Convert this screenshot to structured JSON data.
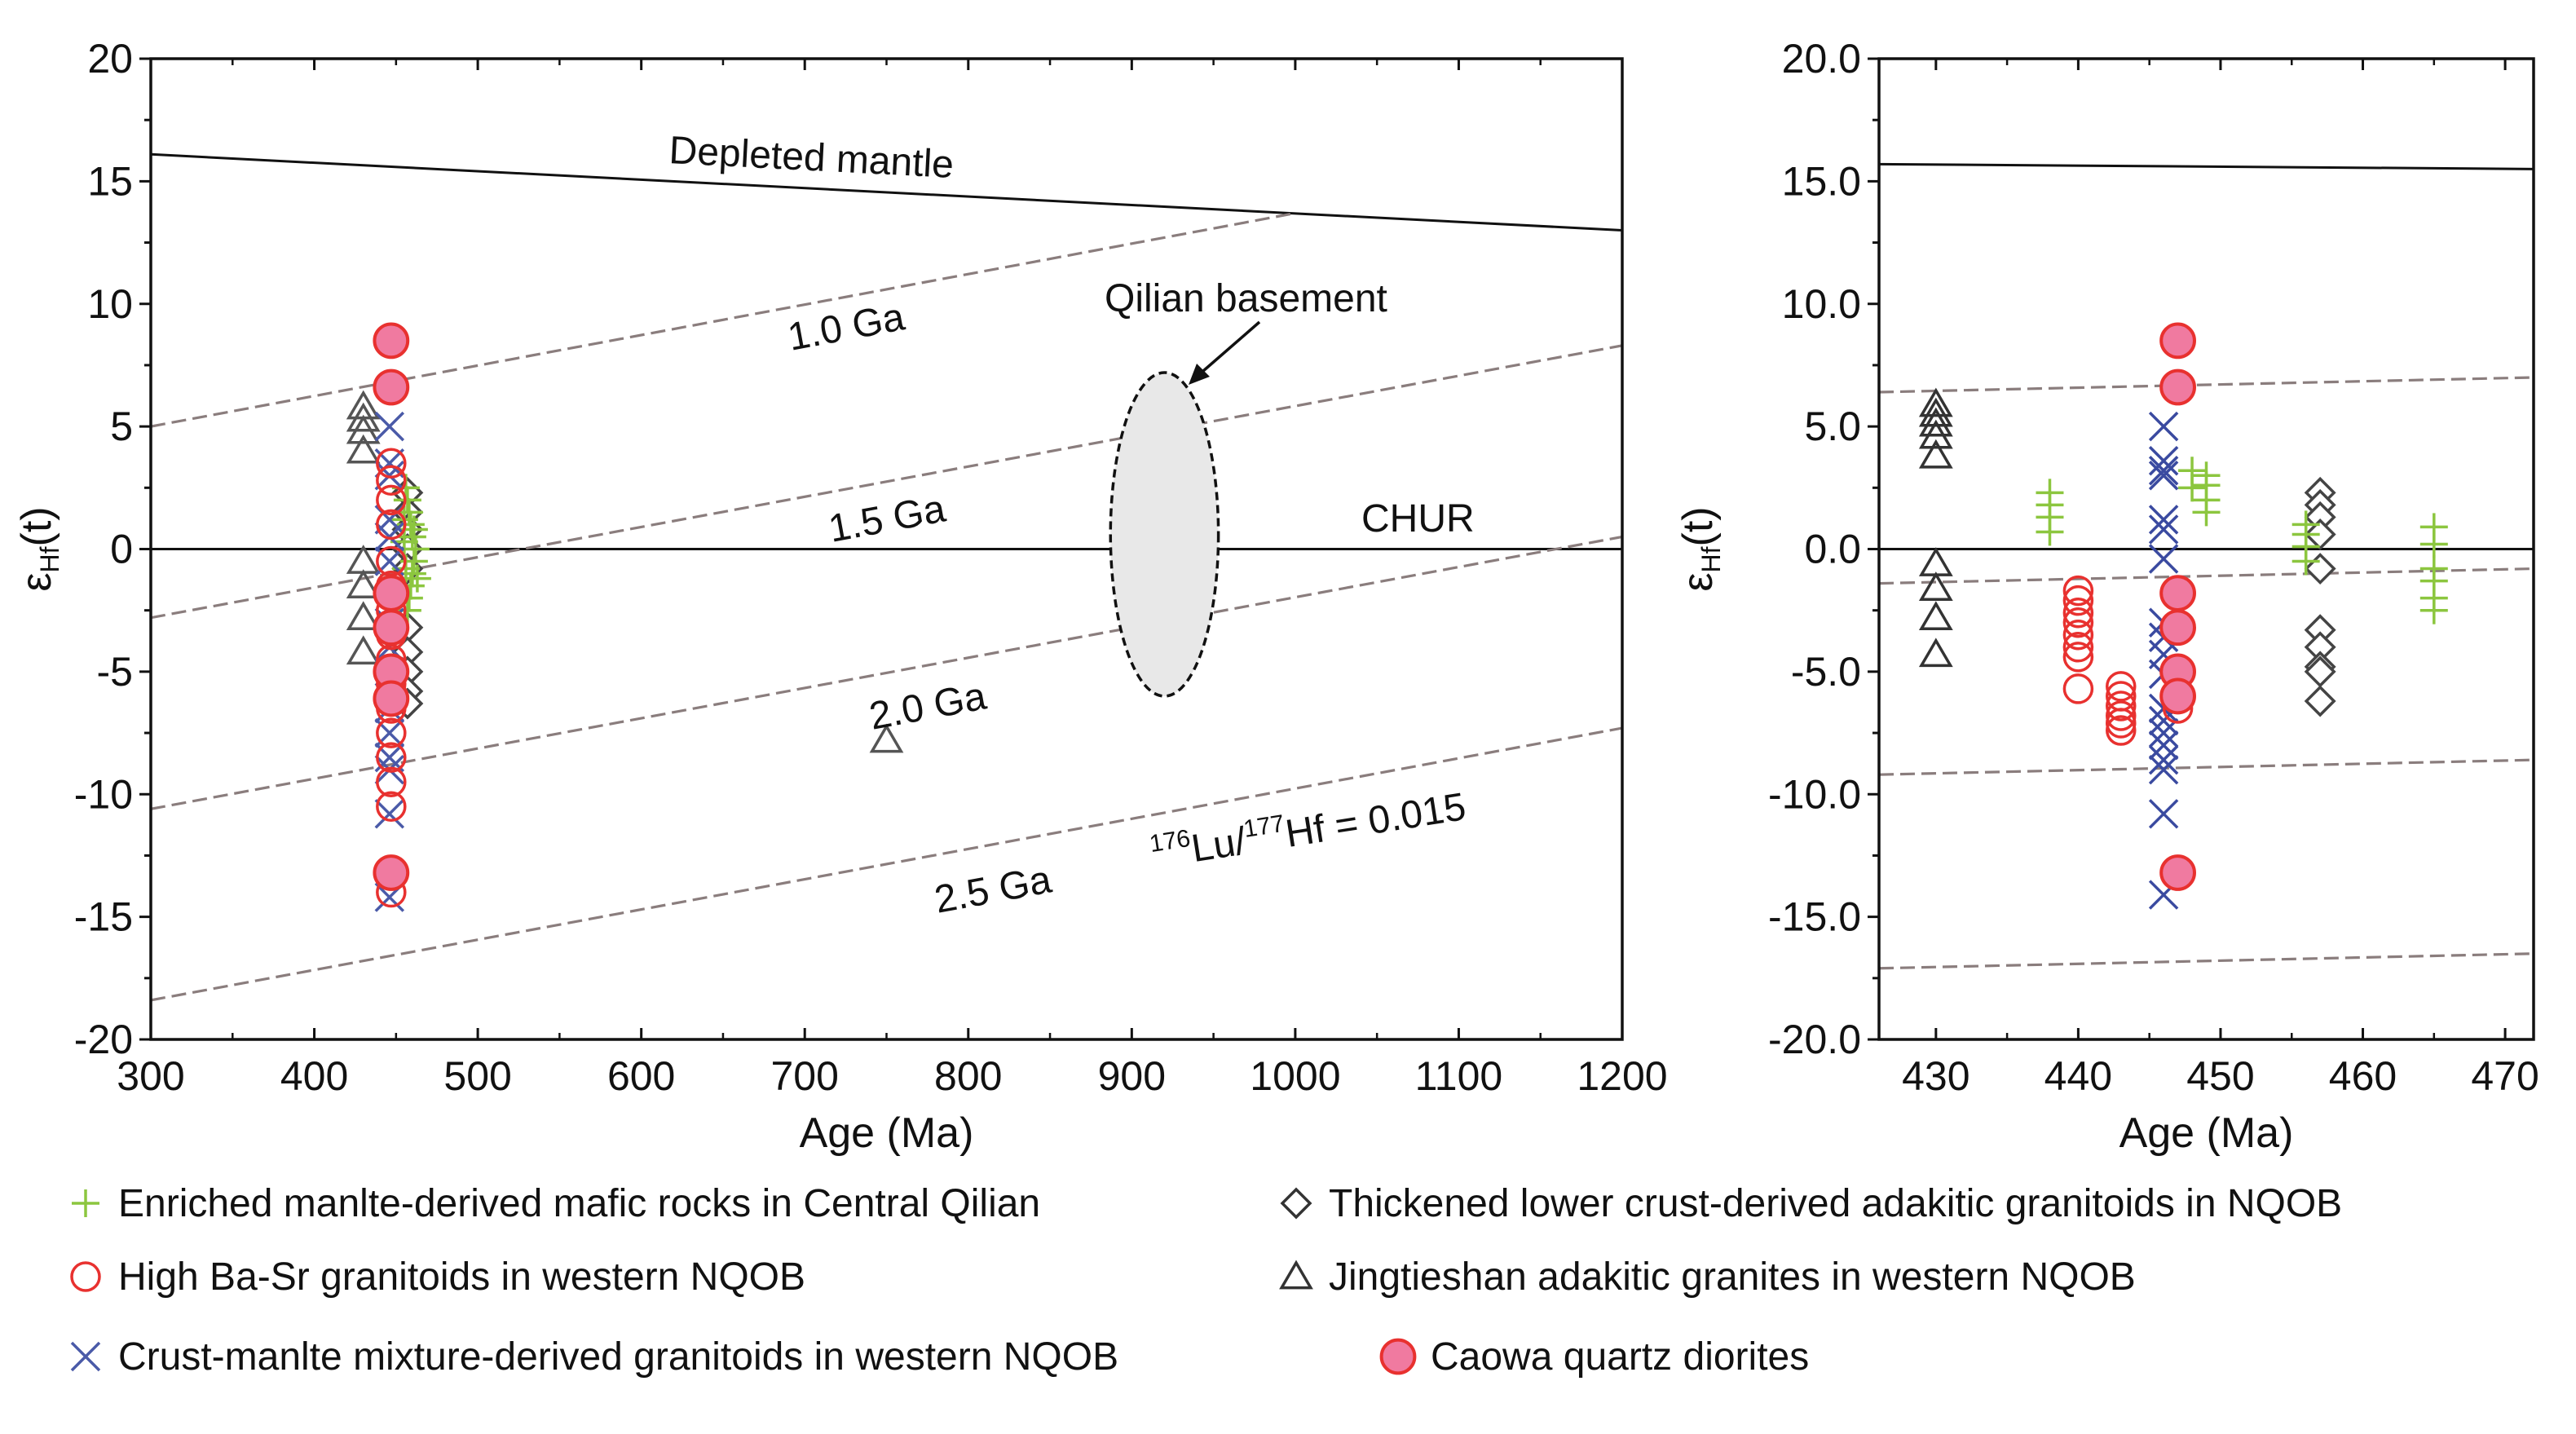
{
  "chart_data": [
    {
      "type": "scatter",
      "panel": "left",
      "xlabel": "Age (Ma)",
      "ylabel": "εHf(t)",
      "xlim": [
        300,
        1200
      ],
      "ylim": [
        -20,
        20
      ],
      "x_ticks": [
        "300",
        "400",
        "500",
        "600",
        "700",
        "800",
        "900",
        "1000",
        "1100",
        "1200"
      ],
      "y_ticks": [
        "20",
        "15",
        "10",
        "5",
        "0",
        "-5",
        "-10",
        "-15",
        "-20"
      ],
      "reference_lines": [
        {
          "name": "Depleted mantle",
          "x": [
            300,
            1200
          ],
          "y": [
            16.1,
            13.0
          ]
        },
        {
          "name": "CHUR",
          "x": [
            300,
            1200
          ],
          "y": [
            0,
            0
          ]
        },
        {
          "name": "1.0 Ga",
          "x": [
            300,
            1000
          ],
          "y": [
            5.0,
            13.7
          ]
        },
        {
          "name": "1.5 Ga",
          "x": [
            300,
            1200
          ],
          "y": [
            -2.8,
            8.3
          ]
        },
        {
          "name": "2.0 Ga",
          "x": [
            300,
            1200
          ],
          "y": [
            -10.6,
            0.5
          ]
        },
        {
          "name": "2.5 Ga",
          "x": [
            300,
            1200
          ],
          "y": [
            -18.4,
            -7.3
          ]
        }
      ],
      "annotations": {
        "depleted_mantle": "Depleted mantle",
        "chur": "CHUR",
        "ga10": "1.0 Ga",
        "ga15": "1.5 Ga",
        "ga20": "2.0 Ga",
        "ga25": "2.5 Ga",
        "basement": "Qilian basement",
        "lu_hf_pre": "Lu/",
        "lu_sup": "176",
        "hf_sup": "177",
        "lu_hf_post": "Hf = 0.015"
      },
      "basement_ellipse": {
        "x_center": 920,
        "y_center": 0.6,
        "x_halfwidth": 33,
        "y_halfheight": 6.6
      },
      "series": [
        {
          "name": "Enriched manlte-derived mafic rocks in Central Qilian",
          "marker": "plus",
          "color": "#8cc63f",
          "points": [
            [
              457,
              -2.5
            ],
            [
              458,
              -2.0
            ],
            [
              459,
              -1.5
            ],
            [
              460,
              -1.0
            ],
            [
              461,
              -0.5
            ],
            [
              462,
              0.0
            ],
            [
              460,
              0.5
            ],
            [
              459,
              1.0
            ],
            [
              458,
              1.5
            ],
            [
              457,
              2.0
            ],
            [
              456,
              -0.8
            ],
            [
              461,
              0.8
            ],
            [
              463,
              -1.2
            ],
            [
              455,
              0.3
            ],
            [
              455,
              1.2
            ],
            [
              456,
              2.5
            ]
          ]
        },
        {
          "name": "Thickened lower crust-derived adaktic granitoids in NQOB",
          "marker": "diamond",
          "color": "#444444",
          "points": [
            [
              457,
              2.3
            ],
            [
              457,
              1.5
            ],
            [
              457,
              0.8
            ],
            [
              457,
              0.0
            ],
            [
              457,
              -0.8
            ],
            [
              457,
              -3.2
            ],
            [
              457,
              -4.2
            ],
            [
              457,
              -5.0
            ],
            [
              457,
              -5.8
            ],
            [
              457,
              -6.3
            ]
          ]
        },
        {
          "name": "High Ba-Sr granitoids in western NQOB",
          "marker": "circle-open",
          "color": "#e8312f",
          "points": [
            [
              447,
              3.5
            ],
            [
              447,
              2.8
            ],
            [
              447,
              2.0
            ],
            [
              447,
              1.0
            ],
            [
              447,
              -0.5
            ],
            [
              447,
              -1.5
            ],
            [
              447,
              -2.5
            ],
            [
              447,
              -3.5
            ],
            [
              447,
              -4.5
            ],
            [
              447,
              -5.5
            ],
            [
              447,
              -6.5
            ],
            [
              447,
              -7.5
            ],
            [
              447,
              -8.5
            ],
            [
              447,
              -9.5
            ],
            [
              447,
              -10.5
            ],
            [
              447,
              -14.0
            ]
          ]
        },
        {
          "name": "Jingtieshan adaktic granites in western NQOB",
          "marker": "triangle",
          "color": "#555555",
          "points": [
            [
              430,
              5.8
            ],
            [
              430,
              5.3
            ],
            [
              430,
              4.8
            ],
            [
              430,
              4.0
            ],
            [
              430,
              -0.5
            ],
            [
              430,
              -1.5
            ],
            [
              430,
              -2.8
            ],
            [
              430,
              -4.2
            ],
            [
              750,
              -7.8
            ]
          ]
        },
        {
          "name": "Crust-manlte mixture-derived granitoids in western NQOB",
          "marker": "cross",
          "color": "#4a5aa8",
          "points": [
            [
              446,
              5.0
            ],
            [
              446,
              3.5
            ],
            [
              446,
              3.0
            ],
            [
              446,
              1.2
            ],
            [
              446,
              0.5
            ],
            [
              446,
              -0.5
            ],
            [
              446,
              -3.0
            ],
            [
              446,
              -4.0
            ],
            [
              446,
              -5.0
            ],
            [
              446,
              -6.5
            ],
            [
              446,
              -7.5
            ],
            [
              446,
              -8.5
            ],
            [
              446,
              -9.0
            ],
            [
              446,
              -10.8
            ],
            [
              446,
              -14.2
            ]
          ]
        },
        {
          "name": "Caowa quartz diorites",
          "marker": "circle-filled",
          "color": "#f07aa0",
          "points": [
            [
              447,
              8.5
            ],
            [
              447,
              6.6
            ],
            [
              447,
              -1.8
            ],
            [
              447,
              -3.2
            ],
            [
              447,
              -5.0
            ],
            [
              447,
              -6.1
            ],
            [
              447,
              -13.2
            ]
          ]
        }
      ]
    },
    {
      "type": "scatter",
      "panel": "right",
      "xlabel": "Age (Ma)",
      "ylabel": "εHf(t)",
      "xlim": [
        426,
        472
      ],
      "ylim": [
        -20,
        20
      ],
      "x_ticks": [
        "430",
        "440",
        "450",
        "460",
        "470"
      ],
      "y_ticks": [
        "20.0",
        "15.0",
        "10.0",
        "5.0",
        "0.0",
        "-5.0",
        "-10.0",
        "-15.0",
        "-20.0"
      ],
      "reference_lines": [
        {
          "name": "Depleted mantle",
          "x": [
            426,
            472
          ],
          "y": [
            15.7,
            15.5
          ]
        },
        {
          "name": "CHUR",
          "x": [
            426,
            472
          ],
          "y": [
            0,
            0
          ]
        },
        {
          "name": "1.0 Ga",
          "x": [
            426,
            472
          ],
          "y": [
            6.4,
            7.0
          ]
        },
        {
          "name": "1.5 Ga",
          "x": [
            426,
            472
          ],
          "y": [
            -1.4,
            -0.8
          ]
        },
        {
          "name": "2.0 Ga",
          "x": [
            426,
            472
          ],
          "y": [
            -9.2,
            -8.6
          ]
        },
        {
          "name": "2.5 Ga",
          "x": [
            426,
            472
          ],
          "y": [
            -17.1,
            -16.5
          ]
        }
      ],
      "series": [
        {
          "name": "Enriched manlte-derived mafic rocks in Central Qilian",
          "marker": "plus",
          "color": "#8cc63f",
          "points": [
            [
              438,
              0.7
            ],
            [
              438,
              1.3
            ],
            [
              438,
              1.8
            ],
            [
              438,
              2.3
            ],
            [
              448,
              3.2
            ],
            [
              448,
              2.5
            ],
            [
              449,
              3.0
            ],
            [
              449,
              2.0
            ],
            [
              449,
              1.5
            ],
            [
              449,
              2.6
            ],
            [
              456,
              -0.5
            ],
            [
              456,
              0.1
            ],
            [
              456,
              0.6
            ],
            [
              456,
              1.0
            ],
            [
              465,
              -2.5
            ],
            [
              465,
              -2.0
            ],
            [
              465,
              -1.3
            ],
            [
              465,
              -0.8
            ],
            [
              465,
              0.2
            ],
            [
              465,
              0.9
            ]
          ]
        },
        {
          "name": "Thickened lower crust-derived adaktic granitoids in NQOB",
          "marker": "diamond",
          "color": "#444444",
          "points": [
            [
              457,
              2.3
            ],
            [
              457,
              1.8
            ],
            [
              457,
              1.3
            ],
            [
              457,
              0.6
            ],
            [
              457,
              -0.8
            ],
            [
              457,
              -3.3
            ],
            [
              457,
              -4.0
            ],
            [
              457,
              -4.8
            ],
            [
              457,
              -5.0
            ],
            [
              457,
              -6.2
            ]
          ]
        },
        {
          "name": "High Ba-Sr granitoids in western NQOB",
          "marker": "circle-open",
          "color": "#e8312f",
          "points": [
            [
              440,
              -1.7
            ],
            [
              440,
              -2.1
            ],
            [
              440,
              -2.6
            ],
            [
              440,
              -3.0
            ],
            [
              440,
              -3.5
            ],
            [
              440,
              -4.0
            ],
            [
              440,
              -4.4
            ],
            [
              440,
              -5.7
            ],
            [
              443,
              -5.6
            ],
            [
              443,
              -6.0
            ],
            [
              443,
              -6.4
            ],
            [
              443,
              -6.8
            ],
            [
              443,
              -7.1
            ],
            [
              443,
              -7.4
            ],
            [
              447,
              -6.5
            ],
            [
              447,
              -5.8
            ]
          ]
        },
        {
          "name": "Jingtieshan adaktic granites in western NQOB",
          "marker": "triangle",
          "color": "#333333",
          "points": [
            [
              430,
              5.9
            ],
            [
              430,
              5.5
            ],
            [
              430,
              5.1
            ],
            [
              430,
              4.6
            ],
            [
              430,
              3.8
            ],
            [
              430,
              -0.6
            ],
            [
              430,
              -1.6
            ],
            [
              430,
              -2.8
            ],
            [
              430,
              -4.3
            ]
          ]
        },
        {
          "name": "Crust-manlte mixture-derived granitoids in western NQOB",
          "marker": "cross",
          "color": "#3a4aa0",
          "points": [
            [
              446,
              5.0
            ],
            [
              446,
              3.6
            ],
            [
              446,
              3.2
            ],
            [
              446,
              3.0
            ],
            [
              446,
              1.2
            ],
            [
              446,
              0.8
            ],
            [
              446,
              -0.4
            ],
            [
              446,
              -3.0
            ],
            [
              446,
              -3.6
            ],
            [
              446,
              -4.3
            ],
            [
              446,
              -5.1
            ],
            [
              446,
              -6.5
            ],
            [
              446,
              -7.0
            ],
            [
              446,
              -7.5
            ],
            [
              446,
              -8.0
            ],
            [
              446,
              -8.6
            ],
            [
              446,
              -9.0
            ],
            [
              446,
              -10.8
            ],
            [
              446,
              -14.1
            ]
          ]
        },
        {
          "name": "Caowa quartz diorites",
          "marker": "circle-filled",
          "color": "#f07aa0",
          "points": [
            [
              447,
              8.5
            ],
            [
              447,
              6.6
            ],
            [
              447,
              -1.8
            ],
            [
              447,
              -3.2
            ],
            [
              447,
              -5.0
            ],
            [
              447,
              -6.0
            ],
            [
              447,
              -13.2
            ]
          ]
        }
      ]
    }
  ],
  "legend": [
    {
      "marker": "plus",
      "color": "#8cc63f",
      "label": "Enriched manlte-derived mafic rocks in Central Qilian"
    },
    {
      "marker": "diamond",
      "color": "#333333",
      "label": "Thickened lower crust-derived adakitic granitoids in NQOB"
    },
    {
      "marker": "circle-open",
      "color": "#e8312f",
      "label": "High Ba-Sr granitoids in western NQOB"
    },
    {
      "marker": "triangle",
      "color": "#333333",
      "label": "Jingtieshan adakitic granites in western NQOB"
    },
    {
      "marker": "cross",
      "color": "#4a5aa8",
      "label": "Crust-manlte mixture-derived granitoids in western NQOB"
    },
    {
      "marker": "circle-filled",
      "color": "#f07aa0",
      "label": "Caowa quartz diorites"
    }
  ]
}
